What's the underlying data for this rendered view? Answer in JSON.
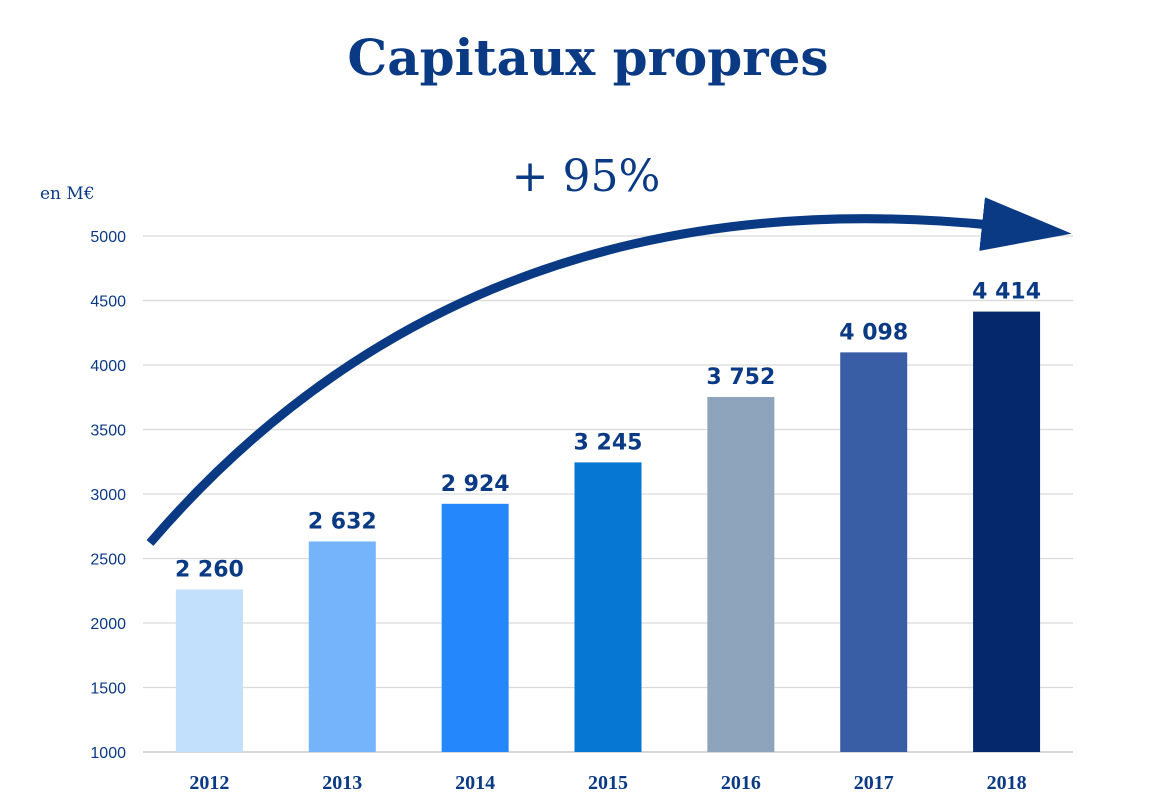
{
  "chart_data": {
    "type": "bar",
    "title": "Capitaux propres",
    "annotation": "+ 95%",
    "ylabel": "en M€",
    "xlabel": "",
    "categories": [
      "2012",
      "2013",
      "2014",
      "2015",
      "2016",
      "2017",
      "2018"
    ],
    "values": [
      2260,
      2632,
      2924,
      3245,
      3752,
      4098,
      4414
    ],
    "data_labels": [
      "2 260",
      "2 632",
      "2 924",
      "3 245",
      "3 752",
      "4 098",
      "4 414"
    ],
    "ylim": [
      1000,
      5000
    ],
    "yticks": [
      "1000",
      "1500",
      "2000",
      "2500",
      "3000",
      "3500",
      "4000",
      "4500",
      "5000"
    ],
    "grid": true,
    "legend": "none",
    "colors": [
      "#c2dffb",
      "#75b4fa",
      "#2587fc",
      "#0677d2",
      "#8ea4bd",
      "#3a5ea6",
      "#05276c"
    ],
    "text_color": "#0b3a85",
    "arrow_color": "#0b3a85"
  }
}
